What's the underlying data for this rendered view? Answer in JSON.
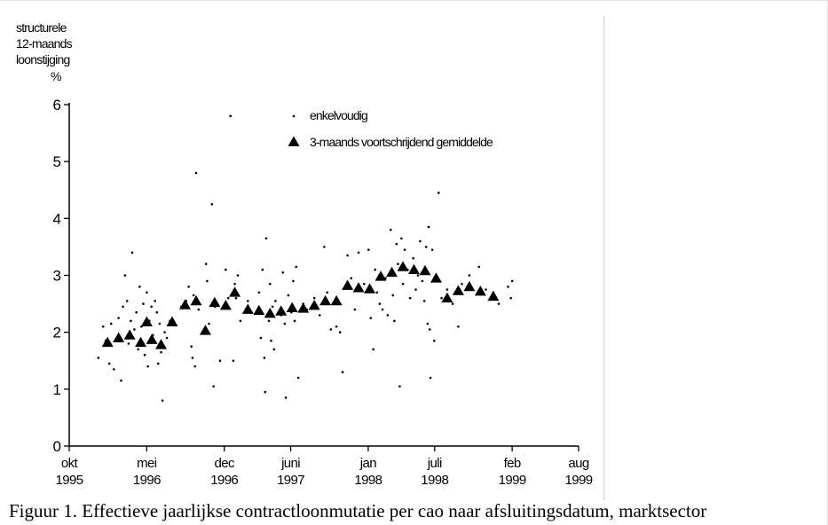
{
  "figure": {
    "caption": "Figuur 1. Effectieve jaarlijkse contractloonmutatie per cao naar afsluitingsdatum, marktsector"
  },
  "chart_data": {
    "type": "scatter",
    "ylabel_lines": [
      "structurele",
      "12-maands",
      "loonstijging",
      "%"
    ],
    "ylim": [
      0,
      6
    ],
    "yticks": [
      0,
      1,
      2,
      3,
      4,
      5,
      6
    ],
    "xlim": [
      "1995-10",
      "1999-08"
    ],
    "xticks": [
      {
        "value": "1995-10",
        "line1": "okt",
        "line2": "1995"
      },
      {
        "value": "1996-05",
        "line1": "mei",
        "line2": "1996"
      },
      {
        "value": "1996-12",
        "line1": "dec",
        "line2": "1996"
      },
      {
        "value": "1997-06",
        "line1": "juni",
        "line2": "1997"
      },
      {
        "value": "1998-01",
        "line1": "jan",
        "line2": "1998"
      },
      {
        "value": "1998-07",
        "line1": "juli",
        "line2": "1998"
      },
      {
        "value": "1999-02",
        "line1": "feb",
        "line2": "1999"
      },
      {
        "value": "1999-08",
        "line1": "aug",
        "line2": "1999"
      }
    ],
    "grid": false,
    "legend_position": "top-right",
    "series": [
      {
        "name": "enkelvoudig",
        "marker": "dot",
        "color": "#000000",
        "points": [
          [
            "1995-12-20",
            1.55
          ],
          [
            "1996-01-03",
            2.1
          ],
          [
            "1996-01-10",
            1.85
          ],
          [
            "1996-01-20",
            1.45
          ],
          [
            "1996-01-25",
            2.15
          ],
          [
            "1996-02-02",
            1.35
          ],
          [
            "1996-02-10",
            1.9
          ],
          [
            "1996-02-15",
            2.25
          ],
          [
            "1996-02-22",
            1.15
          ],
          [
            "1996-02-27",
            2.45
          ],
          [
            "1996-03-02",
            3.0
          ],
          [
            "1996-03-08",
            2.55
          ],
          [
            "1996-03-12",
            1.8
          ],
          [
            "1996-03-18",
            2.2
          ],
          [
            "1996-03-22",
            3.4
          ],
          [
            "1996-03-28",
            2.05
          ],
          [
            "1996-04-03",
            2.35
          ],
          [
            "1996-04-08",
            1.7
          ],
          [
            "1996-04-12",
            2.8
          ],
          [
            "1996-04-17",
            2.1
          ],
          [
            "1996-04-22",
            2.5
          ],
          [
            "1996-04-26",
            1.6
          ],
          [
            "1996-05-01",
            2.7
          ],
          [
            "1996-05-04",
            1.4
          ],
          [
            "1996-05-08",
            2.2
          ],
          [
            "1996-05-14",
            2.45
          ],
          [
            "1996-05-18",
            1.95
          ],
          [
            "1996-05-24",
            2.55
          ],
          [
            "1996-05-29",
            2.35
          ],
          [
            "1996-06-02",
            1.45
          ],
          [
            "1996-06-06",
            2.15
          ],
          [
            "1996-06-10",
            1.65
          ],
          [
            "1996-06-14",
            0.8
          ],
          [
            "1996-06-20",
            2.0
          ],
          [
            "1996-06-26",
            1.9
          ],
          [
            "1996-07-04",
            2.2
          ],
          [
            "1996-08-05",
            2.45
          ],
          [
            "1996-08-18",
            2.55
          ],
          [
            "1996-08-25",
            2.8
          ],
          [
            "1996-09-02",
            1.75
          ],
          [
            "1996-09-05",
            1.55
          ],
          [
            "1996-09-08",
            2.65
          ],
          [
            "1996-09-12",
            1.4
          ],
          [
            "1996-09-15",
            4.8
          ],
          [
            "1996-09-22",
            2.4
          ],
          [
            "1996-10-05",
            2.0
          ],
          [
            "1996-10-12",
            3.2
          ],
          [
            "1996-10-15",
            2.9
          ],
          [
            "1996-10-20",
            2.15
          ],
          [
            "1996-10-28",
            4.25
          ],
          [
            "1996-11-02",
            1.05
          ],
          [
            "1996-11-06",
            2.45
          ],
          [
            "1996-11-20",
            1.5
          ],
          [
            "1996-12-05",
            3.1
          ],
          [
            "1996-12-12",
            2.6
          ],
          [
            "1996-12-18",
            5.8
          ],
          [
            "1996-12-26",
            1.5
          ],
          [
            "1996-12-30",
            2.85
          ],
          [
            "1997-01-03",
            2.6
          ],
          [
            "1997-01-08",
            3.0
          ],
          [
            "1997-01-15",
            2.2
          ],
          [
            "1997-02-05",
            2.55
          ],
          [
            "1997-02-15",
            2.35
          ],
          [
            "1997-03-05",
            2.7
          ],
          [
            "1997-03-10",
            1.9
          ],
          [
            "1997-03-15",
            3.1
          ],
          [
            "1997-03-20",
            1.55
          ],
          [
            "1997-03-22",
            0.95
          ],
          [
            "1997-03-25",
            3.65
          ],
          [
            "1997-04-02",
            2.2
          ],
          [
            "1997-04-05",
            2.85
          ],
          [
            "1997-04-08",
            1.85
          ],
          [
            "1997-04-12",
            2.45
          ],
          [
            "1997-04-16",
            1.7
          ],
          [
            "1997-04-20",
            2.55
          ],
          [
            "1997-05-05",
            2.3
          ],
          [
            "1997-05-10",
            3.05
          ],
          [
            "1997-05-15",
            2.15
          ],
          [
            "1997-05-18",
            0.85
          ],
          [
            "1997-05-25",
            2.65
          ],
          [
            "1997-06-03",
            2.35
          ],
          [
            "1997-06-08",
            2.9
          ],
          [
            "1997-06-12",
            2.2
          ],
          [
            "1997-06-16",
            3.15
          ],
          [
            "1997-06-22",
            1.2
          ],
          [
            "1997-07-05",
            2.5
          ],
          [
            "1997-07-15",
            2.4
          ],
          [
            "1997-08-05",
            2.6
          ],
          [
            "1997-08-20",
            2.3
          ],
          [
            "1997-09-02",
            3.5
          ],
          [
            "1997-09-10",
            2.7
          ],
          [
            "1997-09-20",
            2.05
          ],
          [
            "1997-10-05",
            2.1
          ],
          [
            "1997-10-15",
            2.0
          ],
          [
            "1997-10-22",
            1.3
          ],
          [
            "1997-11-05",
            3.35
          ],
          [
            "1997-11-15",
            2.95
          ],
          [
            "1997-11-25",
            2.4
          ],
          [
            "1997-12-05",
            3.4
          ],
          [
            "1997-12-20",
            2.85
          ],
          [
            "1998-01-02",
            3.45
          ],
          [
            "1998-01-08",
            2.25
          ],
          [
            "1998-01-15",
            1.7
          ],
          [
            "1998-01-20",
            3.1
          ],
          [
            "1998-01-25",
            2.7
          ],
          [
            "1998-02-02",
            2.5
          ],
          [
            "1998-02-10",
            2.4
          ],
          [
            "1998-02-18",
            2.95
          ],
          [
            "1998-02-24",
            2.3
          ],
          [
            "1998-03-02",
            3.8
          ],
          [
            "1998-03-08",
            2.65
          ],
          [
            "1998-03-12",
            2.2
          ],
          [
            "1998-03-18",
            3.55
          ],
          [
            "1998-03-22",
            3.2
          ],
          [
            "1998-03-27",
            1.05
          ],
          [
            "1998-04-01",
            3.65
          ],
          [
            "1998-04-05",
            2.85
          ],
          [
            "1998-04-10",
            3.45
          ],
          [
            "1998-04-18",
            3.1
          ],
          [
            "1998-04-25",
            2.6
          ],
          [
            "1998-05-03",
            3.3
          ],
          [
            "1998-05-10",
            2.75
          ],
          [
            "1998-05-16",
            3.0
          ],
          [
            "1998-05-22",
            3.6
          ],
          [
            "1998-05-28",
            2.9
          ],
          [
            "1998-06-03",
            2.55
          ],
          [
            "1998-06-08",
            3.5
          ],
          [
            "1998-06-12",
            2.15
          ],
          [
            "1998-06-15",
            3.85
          ],
          [
            "1998-06-18",
            2.05
          ],
          [
            "1998-06-20",
            1.2
          ],
          [
            "1998-06-25",
            3.45
          ],
          [
            "1998-06-30",
            1.85
          ],
          [
            "1998-07-05",
            2.9
          ],
          [
            "1998-07-12",
            4.45
          ],
          [
            "1998-07-20",
            2.6
          ],
          [
            "1998-08-05",
            2.75
          ],
          [
            "1998-08-20",
            2.5
          ],
          [
            "1998-09-05",
            2.1
          ],
          [
            "1998-09-15",
            2.85
          ],
          [
            "1998-10-05",
            3.0
          ],
          [
            "1998-11-01",
            3.15
          ],
          [
            "1998-11-20",
            2.75
          ],
          [
            "1998-12-10",
            2.7
          ],
          [
            "1998-12-25",
            2.5
          ],
          [
            "1999-01-20",
            2.8
          ],
          [
            "1999-01-28",
            2.6
          ],
          [
            "1999-02-01",
            2.9
          ]
        ]
      },
      {
        "name": "3-maands voortschrijdend gemiddelde",
        "marker": "triangle",
        "color": "#000000",
        "points": [
          [
            "1996-01-15",
            1.82
          ],
          [
            "1996-02-15",
            1.9
          ],
          [
            "1996-03-15",
            1.95
          ],
          [
            "1996-04-15",
            1.82
          ],
          [
            "1996-05-01",
            2.18
          ],
          [
            "1996-05-15",
            1.87
          ],
          [
            "1996-06-10",
            1.78
          ],
          [
            "1996-07-10",
            2.18
          ],
          [
            "1996-08-15",
            2.48
          ],
          [
            "1996-09-15",
            2.55
          ],
          [
            "1996-10-10",
            2.03
          ],
          [
            "1996-11-05",
            2.52
          ],
          [
            "1996-12-05",
            2.47
          ],
          [
            "1996-12-30",
            2.7
          ],
          [
            "1997-02-05",
            2.4
          ],
          [
            "1997-03-05",
            2.38
          ],
          [
            "1997-04-05",
            2.33
          ],
          [
            "1997-05-05",
            2.37
          ],
          [
            "1997-06-05",
            2.43
          ],
          [
            "1997-07-05",
            2.42
          ],
          [
            "1997-08-05",
            2.47
          ],
          [
            "1997-09-05",
            2.55
          ],
          [
            "1997-10-05",
            2.55
          ],
          [
            "1997-11-05",
            2.82
          ],
          [
            "1997-12-05",
            2.78
          ],
          [
            "1998-01-05",
            2.76
          ],
          [
            "1998-02-05",
            2.98
          ],
          [
            "1998-03-05",
            3.05
          ],
          [
            "1998-04-05",
            3.15
          ],
          [
            "1998-05-05",
            3.1
          ],
          [
            "1998-06-05",
            3.08
          ],
          [
            "1998-07-05",
            2.95
          ],
          [
            "1998-08-05",
            2.6
          ],
          [
            "1998-09-05",
            2.73
          ],
          [
            "1998-10-05",
            2.8
          ],
          [
            "1998-11-05",
            2.72
          ],
          [
            "1998-12-10",
            2.63
          ]
        ]
      }
    ]
  }
}
